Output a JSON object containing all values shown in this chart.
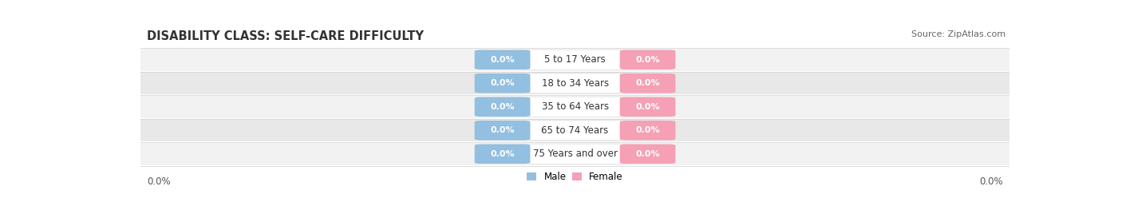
{
  "title": "DISABILITY CLASS: SELF-CARE DIFFICULTY",
  "source": "Source: ZipAtlas.com",
  "categories": [
    "5 to 17 Years",
    "18 to 34 Years",
    "35 to 64 Years",
    "65 to 74 Years",
    "75 Years and over"
  ],
  "male_values": [
    0.0,
    0.0,
    0.0,
    0.0,
    0.0
  ],
  "female_values": [
    0.0,
    0.0,
    0.0,
    0.0,
    0.0
  ],
  "male_color": "#93bfe0",
  "female_color": "#f5a0b5",
  "row_bg_even": "#f2f2f2",
  "row_bg_odd": "#e8e8e8",
  "row_line_color": "#d0d0d0",
  "cat_box_color": "#ffffff",
  "left_label": "0.0%",
  "right_label": "0.0%",
  "legend_male": "Male",
  "legend_female": "Female",
  "title_fontsize": 10.5,
  "source_fontsize": 8,
  "label_fontsize": 8.5,
  "category_fontsize": 8.5,
  "value_fontsize": 8
}
